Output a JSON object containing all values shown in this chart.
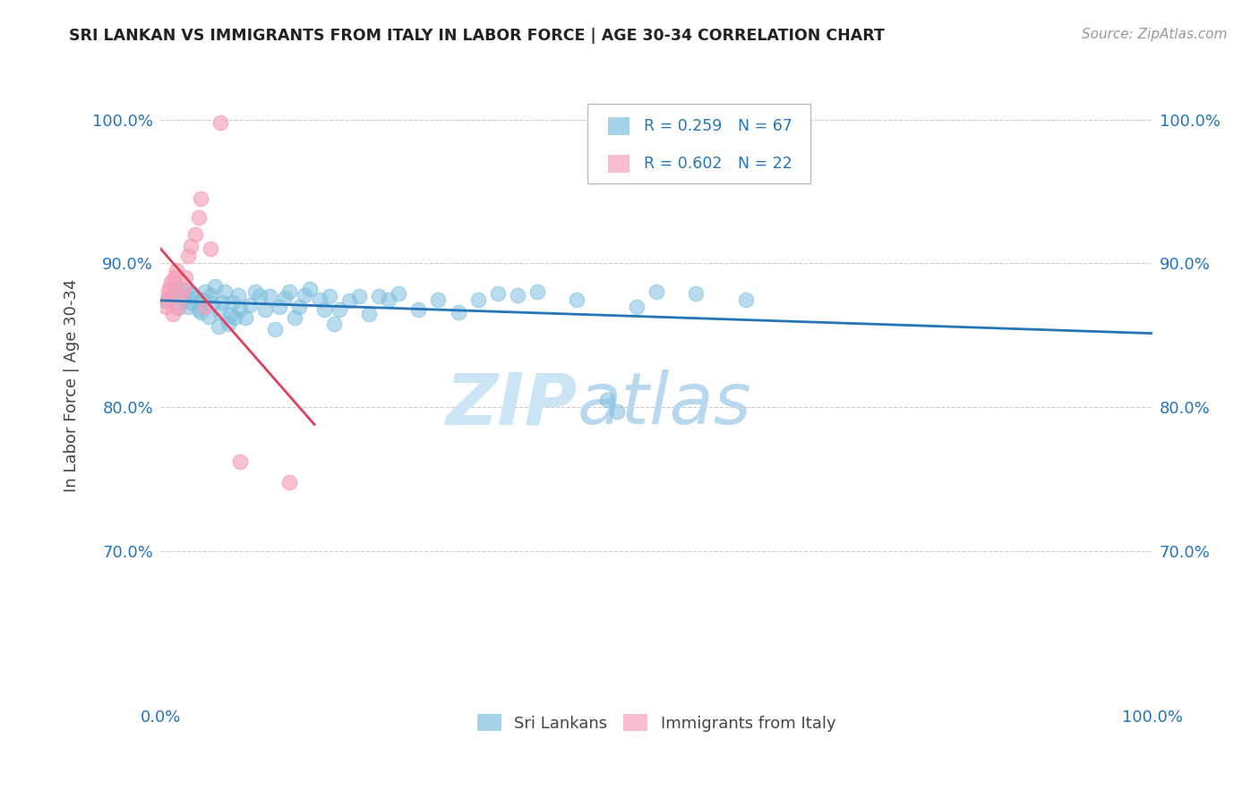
{
  "title": "SRI LANKAN VS IMMIGRANTS FROM ITALY IN LABOR FORCE | AGE 30-34 CORRELATION CHART",
  "source": "Source: ZipAtlas.com",
  "ylabel": "In Labor Force | Age 30-34",
  "xlim": [
    0.0,
    1.0
  ],
  "ylim": [
    0.595,
    1.035
  ],
  "xticks": [
    0.0,
    0.2,
    0.4,
    0.6,
    0.8,
    1.0
  ],
  "xticklabels": [
    "0.0%",
    "",
    "",
    "",
    "",
    "100.0%"
  ],
  "yticks": [
    0.7,
    0.8,
    0.9,
    1.0
  ],
  "yticklabels": [
    "70.0%",
    "80.0%",
    "90.0%",
    "100.0%"
  ],
  "legend_labels": [
    "Sri Lankans",
    "Immigrants from Italy"
  ],
  "blue_color": "#7fbfdf",
  "pink_color": "#f5a0b8",
  "blue_line_color": "#2575b7",
  "pink_line_color": "#e0405a",
  "R_blue": 0.259,
  "N_blue": 67,
  "R_pink": 0.602,
  "N_pink": 22,
  "watermark_zip": "ZIP",
  "watermark_atlas": "atlas",
  "blue_points_x": [
    0.005,
    0.012,
    0.015,
    0.018,
    0.022,
    0.025,
    0.028,
    0.03,
    0.032,
    0.035,
    0.038,
    0.04,
    0.042,
    0.045,
    0.048,
    0.05,
    0.052,
    0.055,
    0.058,
    0.06,
    0.062,
    0.065,
    0.068,
    0.07,
    0.073,
    0.075,
    0.078,
    0.08,
    0.085,
    0.09,
    0.095,
    0.1,
    0.105,
    0.11,
    0.115,
    0.12,
    0.125,
    0.13,
    0.135,
    0.14,
    0.145,
    0.15,
    0.16,
    0.165,
    0.17,
    0.175,
    0.18,
    0.19,
    0.2,
    0.21,
    0.22,
    0.23,
    0.24,
    0.26,
    0.28,
    0.3,
    0.32,
    0.34,
    0.36,
    0.38,
    0.42,
    0.45,
    0.46,
    0.48,
    0.5,
    0.54,
    0.59
  ],
  "blue_points_y": [
    0.874,
    0.878,
    0.883,
    0.869,
    0.875,
    0.881,
    0.87,
    0.873,
    0.879,
    0.876,
    0.868,
    0.866,
    0.875,
    0.88,
    0.863,
    0.878,
    0.872,
    0.884,
    0.856,
    0.866,
    0.873,
    0.88,
    0.858,
    0.864,
    0.873,
    0.862,
    0.878,
    0.868,
    0.862,
    0.871,
    0.88,
    0.877,
    0.868,
    0.877,
    0.854,
    0.87,
    0.876,
    0.88,
    0.862,
    0.87,
    0.878,
    0.882,
    0.875,
    0.868,
    0.877,
    0.858,
    0.868,
    0.874,
    0.877,
    0.865,
    0.877,
    0.875,
    0.879,
    0.868,
    0.875,
    0.866,
    0.875,
    0.879,
    0.878,
    0.88,
    0.875,
    0.805,
    0.797,
    0.87,
    0.88,
    0.879,
    0.875
  ],
  "pink_points_x": [
    0.005,
    0.007,
    0.008,
    0.009,
    0.01,
    0.012,
    0.014,
    0.016,
    0.018,
    0.02,
    0.022,
    0.025,
    0.028,
    0.03,
    0.035,
    0.038,
    0.04,
    0.045,
    0.05,
    0.06,
    0.08,
    0.13
  ],
  "pink_points_y": [
    0.87,
    0.875,
    0.88,
    0.883,
    0.887,
    0.865,
    0.89,
    0.895,
    0.87,
    0.878,
    0.882,
    0.89,
    0.905,
    0.912,
    0.92,
    0.932,
    0.945,
    0.87,
    0.91,
    0.998,
    0.762,
    0.748
  ]
}
